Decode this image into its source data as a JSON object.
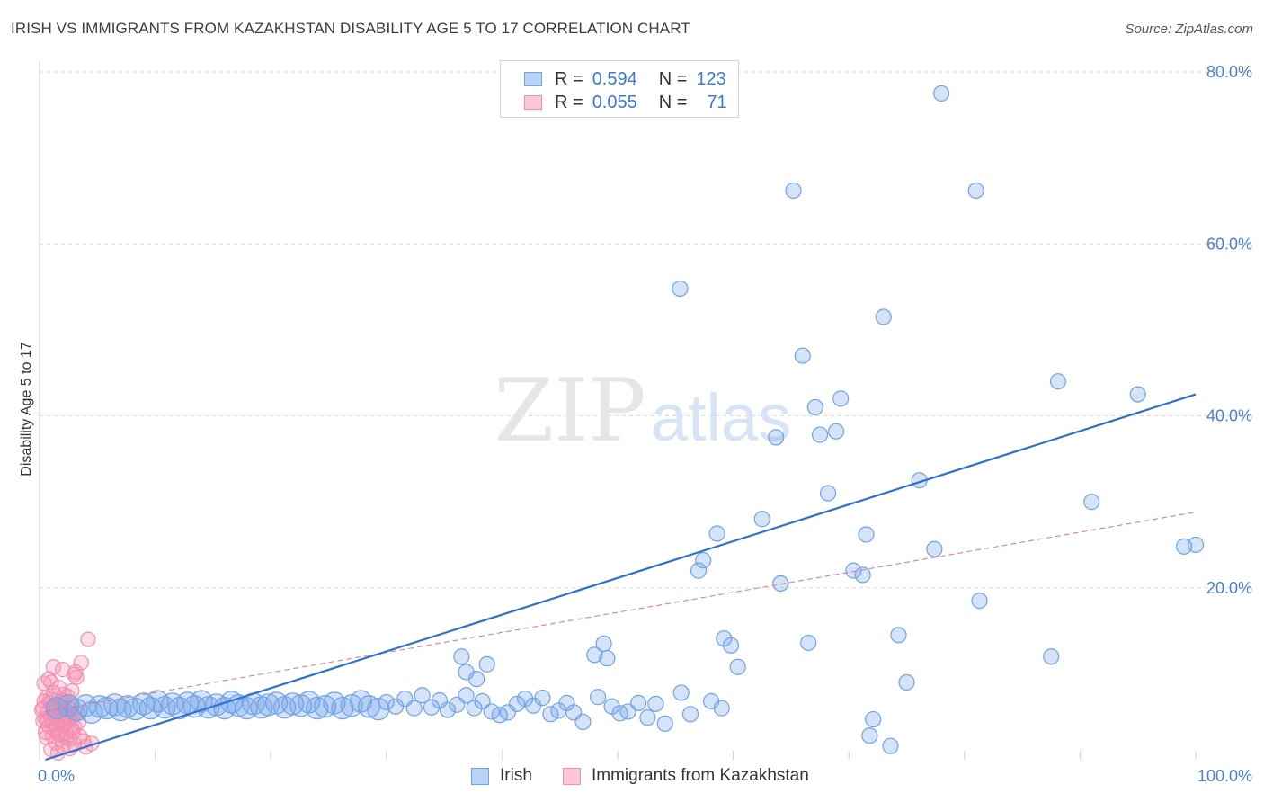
{
  "header": {
    "title": "IRISH VS IMMIGRANTS FROM KAZAKHSTAN DISABILITY AGE 5 TO 17 CORRELATION CHART",
    "source": "Source: ZipAtlas.com"
  },
  "legend": {
    "rows": [
      {
        "r_label": "R =",
        "r_value": "0.594",
        "n_label": "N =",
        "n_value": "123"
      },
      {
        "r_label": "R =",
        "r_value": "0.055",
        "n_label": "N =",
        "n_value": "71"
      }
    ]
  },
  "watermark": {
    "zip": "ZIP",
    "atlas": "atlas"
  },
  "colors": {
    "irish": "#6fa3e8",
    "irish_line": "#2f6fd0",
    "kaz": "#f48fb1",
    "kaz_line": "#e0738f",
    "grid": "#d9d9d9",
    "accent": "#4a7fd4"
  },
  "chart_data": {
    "type": "scatter",
    "title": "IRISH VS IMMIGRANTS FROM KAZAKHSTAN DISABILITY AGE 5 TO 17 CORRELATION CHART",
    "xlabel": "",
    "ylabel": "Disability Age 5 to 17",
    "xlim": [
      0,
      100
    ],
    "ylim": [
      0,
      80
    ],
    "x_tick_labels": [
      "0.0%",
      "100.0%"
    ],
    "y_ticks": [
      20,
      40,
      60,
      80
    ],
    "y_tick_labels": [
      "20.0%",
      "40.0%",
      "60.0%",
      "80.0%"
    ],
    "grid": true,
    "legend_position": "top-center",
    "series": [
      {
        "name": "Irish",
        "r": 0.594,
        "n": 123,
        "trend": [
          [
            0.5,
            -0.4
          ],
          [
            100,
            42.5
          ]
        ],
        "points": [
          [
            1.5,
            6.0
          ],
          [
            2.5,
            6.3
          ],
          [
            3.2,
            5.8
          ],
          [
            4.0,
            6.3
          ],
          [
            4.5,
            5.5
          ],
          [
            5.2,
            6.2
          ],
          [
            5.8,
            6.0
          ],
          [
            6.5,
            6.4
          ],
          [
            7.0,
            5.8
          ],
          [
            7.6,
            6.2
          ],
          [
            8.3,
            5.9
          ],
          [
            9.0,
            6.5
          ],
          [
            9.6,
            6.0
          ],
          [
            10.2,
            6.8
          ],
          [
            10.8,
            6.1
          ],
          [
            11.5,
            6.5
          ],
          [
            12.1,
            6.0
          ],
          [
            12.8,
            6.6
          ],
          [
            13.4,
            6.2
          ],
          [
            14.0,
            6.8
          ],
          [
            14.6,
            6.1
          ],
          [
            15.3,
            6.4
          ],
          [
            16.0,
            6.0
          ],
          [
            16.6,
            6.7
          ],
          [
            17.2,
            6.3
          ],
          [
            17.9,
            6.0
          ],
          [
            18.5,
            6.5
          ],
          [
            19.2,
            6.1
          ],
          [
            19.8,
            6.4
          ],
          [
            20.5,
            6.6
          ],
          [
            21.2,
            6.1
          ],
          [
            21.9,
            6.5
          ],
          [
            22.6,
            6.3
          ],
          [
            23.3,
            6.7
          ],
          [
            24.0,
            6.0
          ],
          [
            24.7,
            6.2
          ],
          [
            25.5,
            6.6
          ],
          [
            26.2,
            6.0
          ],
          [
            27.0,
            6.3
          ],
          [
            27.8,
            6.8
          ],
          [
            28.5,
            6.2
          ],
          [
            29.3,
            5.9
          ],
          [
            30.0,
            6.7
          ],
          [
            30.8,
            6.2
          ],
          [
            31.6,
            7.1
          ],
          [
            32.4,
            6.0
          ],
          [
            33.1,
            7.5
          ],
          [
            33.9,
            6.1
          ],
          [
            34.6,
            6.9
          ],
          [
            35.3,
            5.8
          ],
          [
            36.1,
            6.4
          ],
          [
            36.9,
            7.5
          ],
          [
            37.6,
            6.0
          ],
          [
            38.3,
            6.8
          ],
          [
            39.1,
            5.6
          ],
          [
            39.8,
            5.2
          ],
          [
            40.5,
            5.5
          ],
          [
            41.3,
            6.5
          ],
          [
            42.0,
            7.1
          ],
          [
            42.7,
            6.3
          ],
          [
            43.5,
            7.2
          ],
          [
            44.2,
            5.3
          ],
          [
            44.9,
            5.7
          ],
          [
            45.6,
            6.6
          ],
          [
            46.2,
            5.5
          ],
          [
            47.0,
            4.4
          ],
          [
            48.3,
            7.3
          ],
          [
            49.5,
            6.2
          ],
          [
            50.2,
            5.4
          ],
          [
            50.9,
            5.6
          ],
          [
            51.8,
            6.6
          ],
          [
            52.6,
            4.9
          ],
          [
            53.3,
            6.5
          ],
          [
            54.1,
            4.2
          ],
          [
            55.5,
            7.8
          ],
          [
            56.3,
            5.3
          ],
          [
            58.1,
            6.8
          ],
          [
            59.0,
            6.0
          ],
          [
            36.5,
            12.0
          ],
          [
            36.9,
            10.2
          ],
          [
            37.8,
            9.4
          ],
          [
            38.7,
            11.1
          ],
          [
            48.0,
            12.2
          ],
          [
            48.8,
            13.5
          ],
          [
            49.1,
            11.8
          ],
          [
            57.0,
            22.0
          ],
          [
            57.4,
            23.2
          ],
          [
            59.2,
            14.1
          ],
          [
            59.8,
            13.3
          ],
          [
            60.4,
            10.8
          ],
          [
            62.5,
            28.0
          ],
          [
            63.7,
            37.5
          ],
          [
            64.1,
            20.5
          ],
          [
            65.2,
            66.2
          ],
          [
            66.0,
            47.0
          ],
          [
            67.1,
            41.0
          ],
          [
            67.5,
            37.8
          ],
          [
            68.2,
            31.0
          ],
          [
            68.9,
            38.2
          ],
          [
            69.3,
            42.0
          ],
          [
            70.4,
            22.0
          ],
          [
            71.2,
            21.5
          ],
          [
            71.5,
            26.2
          ],
          [
            73.0,
            51.5
          ],
          [
            74.3,
            14.5
          ],
          [
            75.0,
            9.0
          ],
          [
            76.1,
            32.5
          ],
          [
            77.4,
            24.5
          ],
          [
            81.0,
            66.2
          ],
          [
            81.3,
            18.5
          ],
          [
            87.5,
            12.0
          ],
          [
            88.1,
            44.0
          ],
          [
            91.0,
            30.0
          ],
          [
            95.0,
            42.5
          ],
          [
            99.0,
            24.8
          ],
          [
            100.0,
            25.0
          ],
          [
            66.5,
            13.6
          ],
          [
            72.1,
            4.7
          ],
          [
            55.4,
            54.8
          ],
          [
            58.6,
            26.3
          ],
          [
            78.0,
            77.5
          ],
          [
            71.8,
            2.8
          ],
          [
            73.6,
            1.6
          ]
        ]
      },
      {
        "name": "Immigrants from Kazakhstan",
        "r": 0.055,
        "n": 71,
        "trend": [
          [
            0.5,
            5.6
          ],
          [
            100,
            28.8
          ]
        ],
        "points": [
          [
            0.3,
            6.0
          ],
          [
            0.5,
            4.8
          ],
          [
            0.6,
            7.2
          ],
          [
            0.7,
            5.5
          ],
          [
            0.8,
            3.9
          ],
          [
            0.9,
            6.6
          ],
          [
            1.0,
            5.0
          ],
          [
            1.1,
            4.3
          ],
          [
            1.2,
            7.8
          ],
          [
            1.3,
            5.9
          ],
          [
            1.4,
            3.4
          ],
          [
            1.5,
            6.2
          ],
          [
            1.6,
            4.6
          ],
          [
            1.7,
            8.4
          ],
          [
            1.8,
            5.3
          ],
          [
            1.9,
            2.9
          ],
          [
            2.0,
            6.9
          ],
          [
            2.1,
            4.0
          ],
          [
            2.2,
            5.7
          ],
          [
            2.3,
            3.1
          ],
          [
            2.4,
            7.4
          ],
          [
            2.5,
            4.9
          ],
          [
            2.6,
            2.4
          ],
          [
            2.7,
            6.4
          ],
          [
            2.8,
            3.6
          ],
          [
            2.9,
            5.1
          ],
          [
            3.0,
            1.8
          ],
          [
            3.1,
            10.2
          ],
          [
            3.2,
            9.6
          ],
          [
            3.4,
            4.4
          ],
          [
            3.6,
            11.3
          ],
          [
            3.8,
            2.2
          ],
          [
            4.0,
            1.5
          ],
          [
            4.2,
            14.0
          ],
          [
            4.5,
            1.9
          ],
          [
            0.4,
            8.9
          ],
          [
            0.6,
            2.6
          ],
          [
            0.8,
            9.4
          ],
          [
            1.0,
            1.2
          ],
          [
            1.2,
            10.8
          ],
          [
            1.4,
            2.0
          ],
          [
            1.6,
            3.0
          ],
          [
            1.8,
            6.7
          ],
          [
            2.0,
            1.6
          ],
          [
            2.2,
            4.2
          ],
          [
            2.4,
            5.6
          ],
          [
            2.6,
            1.3
          ],
          [
            2.8,
            8.0
          ],
          [
            3.0,
            3.8
          ],
          [
            3.3,
            5.4
          ],
          [
            0.5,
            3.2
          ],
          [
            0.7,
            4.6
          ],
          [
            0.9,
            7.0
          ],
          [
            1.1,
            2.8
          ],
          [
            1.3,
            6.1
          ],
          [
            1.5,
            3.7
          ],
          [
            1.7,
            5.2
          ],
          [
            1.9,
            4.1
          ],
          [
            2.1,
            7.6
          ],
          [
            2.3,
            2.5
          ],
          [
            2.5,
            6.0
          ],
          [
            2.7,
            4.7
          ],
          [
            2.9,
            3.3
          ],
          [
            3.5,
            2.7
          ],
          [
            0.2,
            5.8
          ],
          [
            0.3,
            4.5
          ],
          [
            0.4,
            6.8
          ],
          [
            1.0,
            9.0
          ],
          [
            2.0,
            10.5
          ],
          [
            3.0,
            9.9
          ],
          [
            1.6,
            0.8
          ]
        ]
      }
    ]
  },
  "bottom_legend": {
    "irish": "Irish",
    "kaz": "Immigrants from Kazakhstan"
  }
}
